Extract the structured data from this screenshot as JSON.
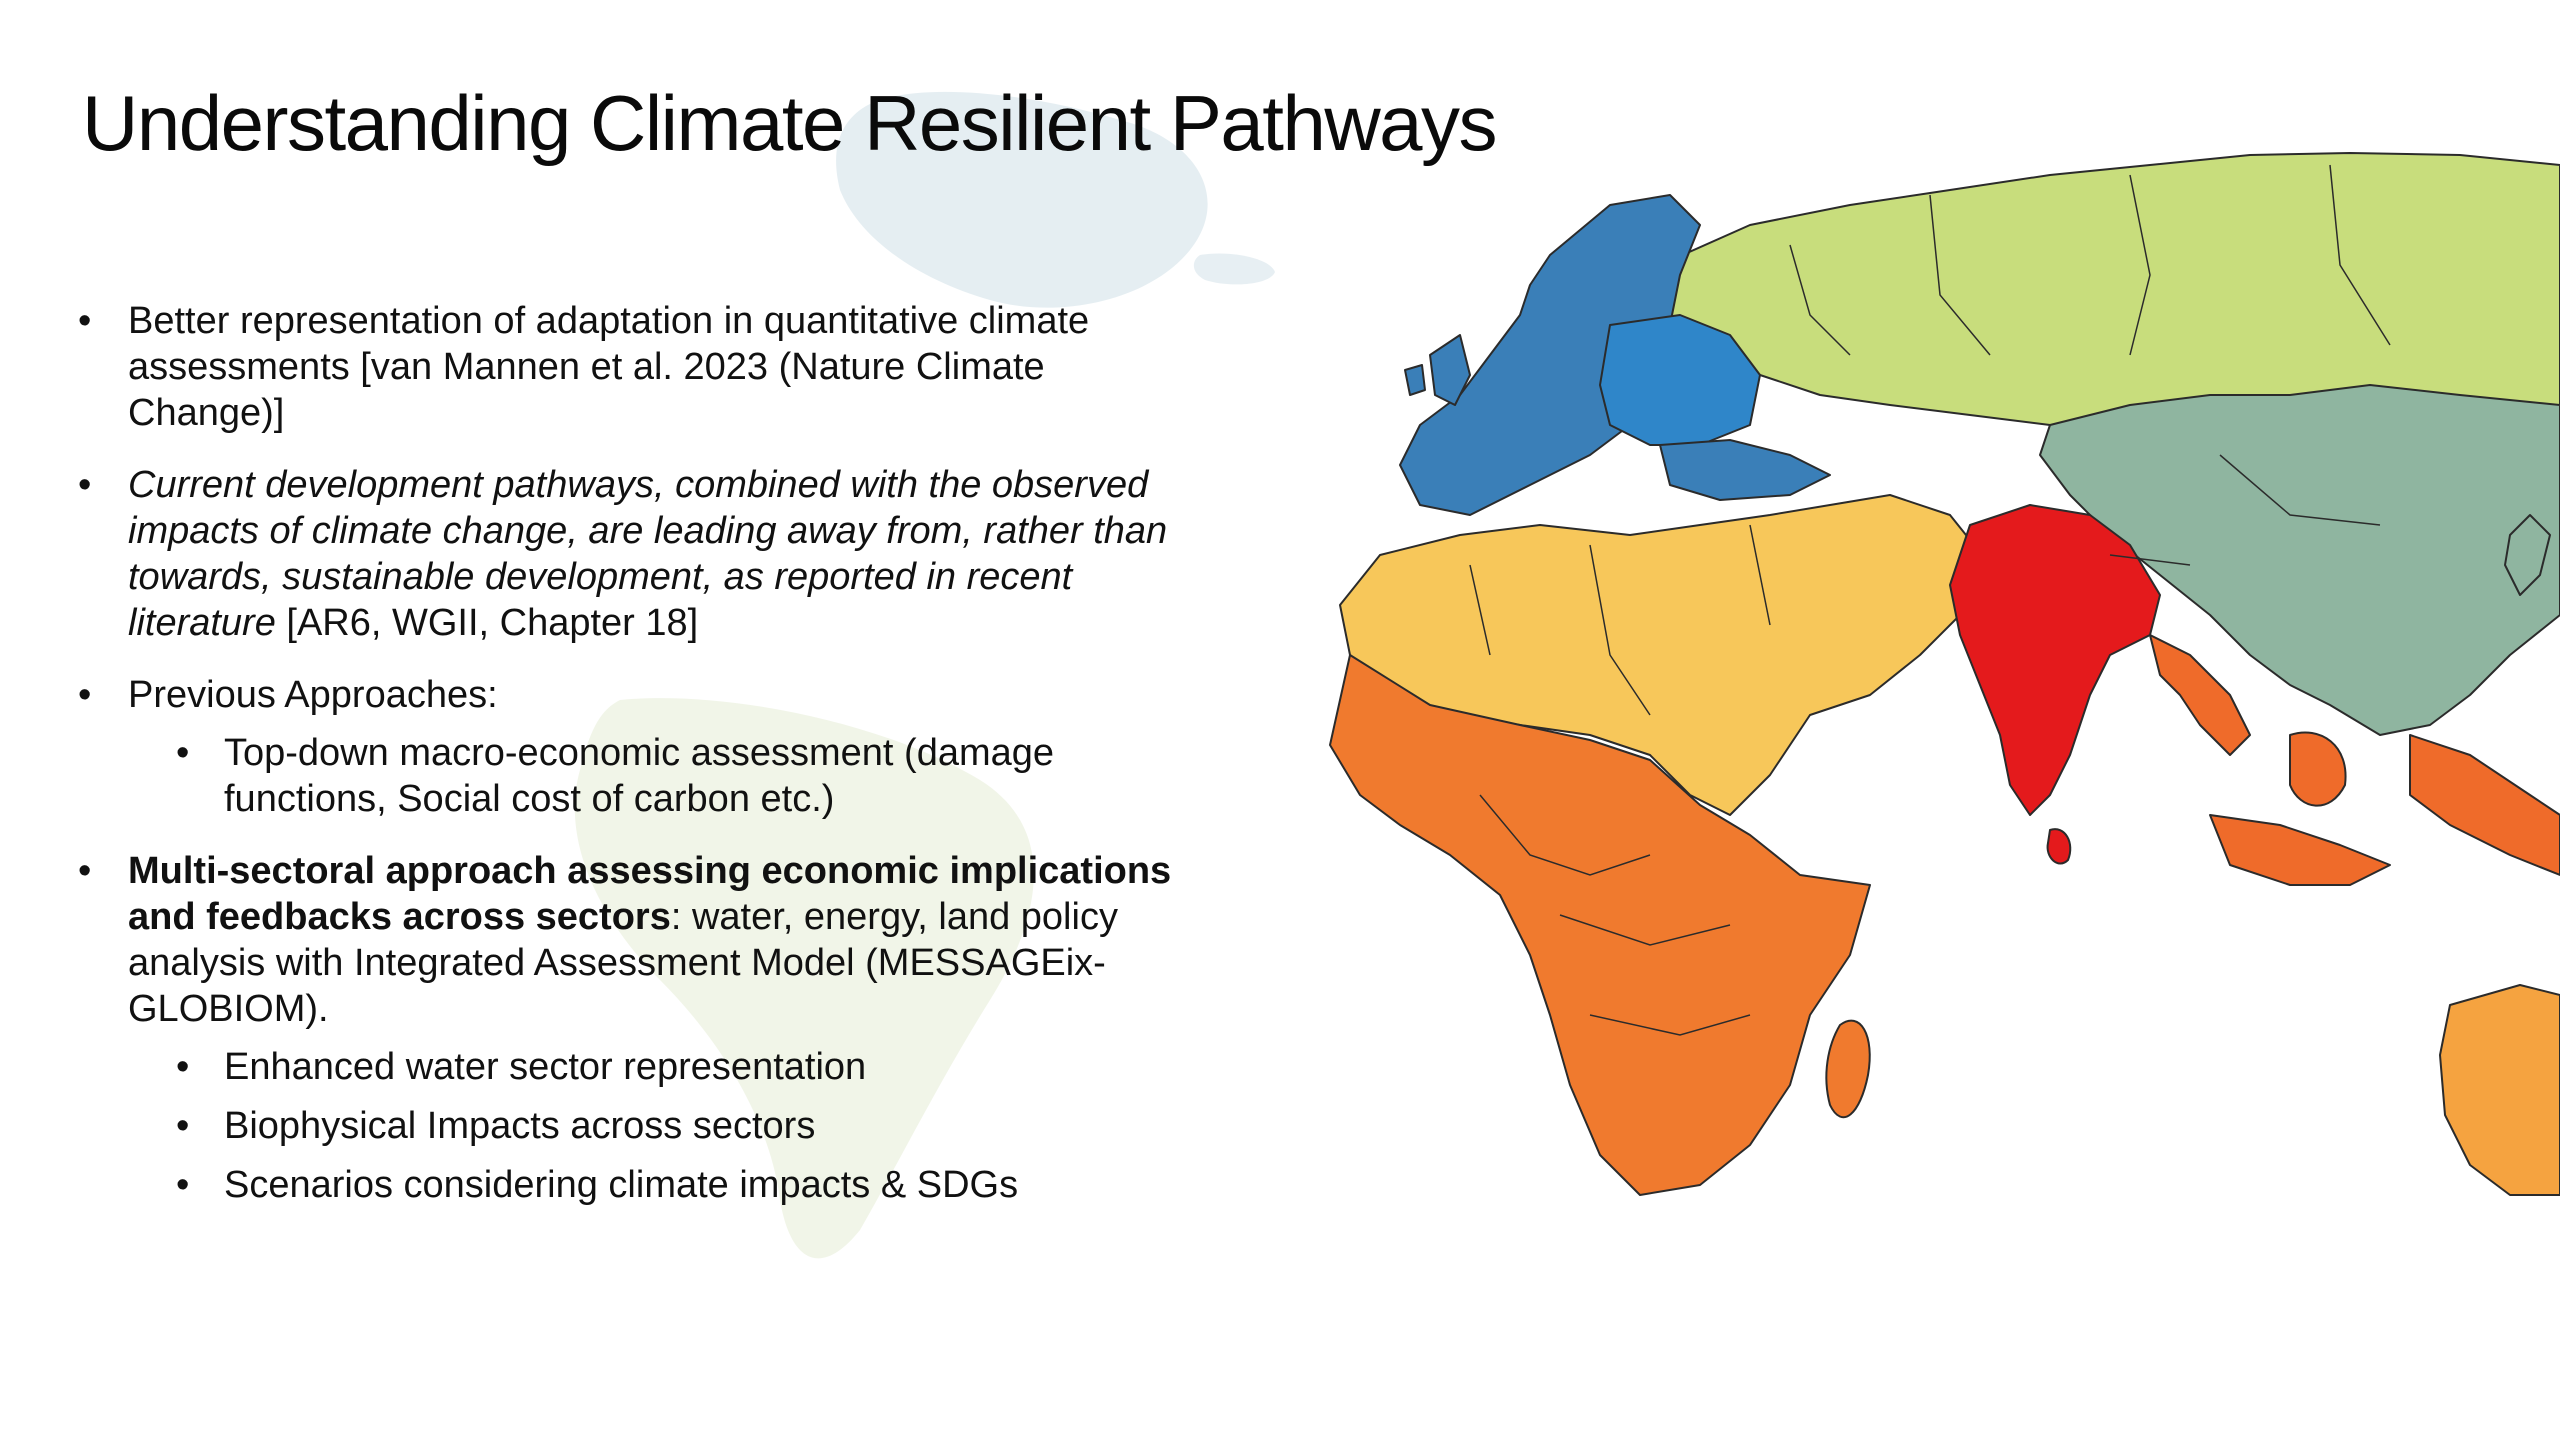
{
  "slide": {
    "title": "Understanding Climate Resilient Pathways",
    "bullets": [
      {
        "text": "Better representation of adaptation in quantitative climate assessments [van Mannen et al. 2023 (Nature Climate Change)]"
      },
      {
        "italic": "Current development pathways, combined with the observed impacts of climate change, are leading away from, rather than towards, sustainable development, as reported in recent literature",
        "text": " [AR6, WGII, Chapter 18]"
      },
      {
        "text": "Previous Approaches:",
        "sub": [
          "Top-down macro-economic assessment (damage functions, Social cost of carbon etc.)"
        ]
      },
      {
        "bold": "Multi-sectoral approach assessing economic implications and feedbacks across sectors",
        "text": ": water, energy, land policy analysis with Integrated Assessment Model (MESSAGEix-GLOBIOM).",
        "sub": [
          "Enhanced water sector representation",
          "Biophysical Impacts across sectors",
          "Scenarios considering climate impacts & SDGs"
        ]
      }
    ]
  },
  "map": {
    "region_colors": {
      "europe_blue": "#3a7fb8",
      "central_europe_blue": "#2f86c9",
      "russia_green": "#c8dd7c",
      "east_asia_teal": "#8fb5a0",
      "mena_yellow": "#f7c75a",
      "south_asia_red": "#e41a1c",
      "africa_orange": "#f07a2e",
      "southeast_asia_orange": "#ef6b2a",
      "australia_orange": "#f5a340"
    }
  }
}
